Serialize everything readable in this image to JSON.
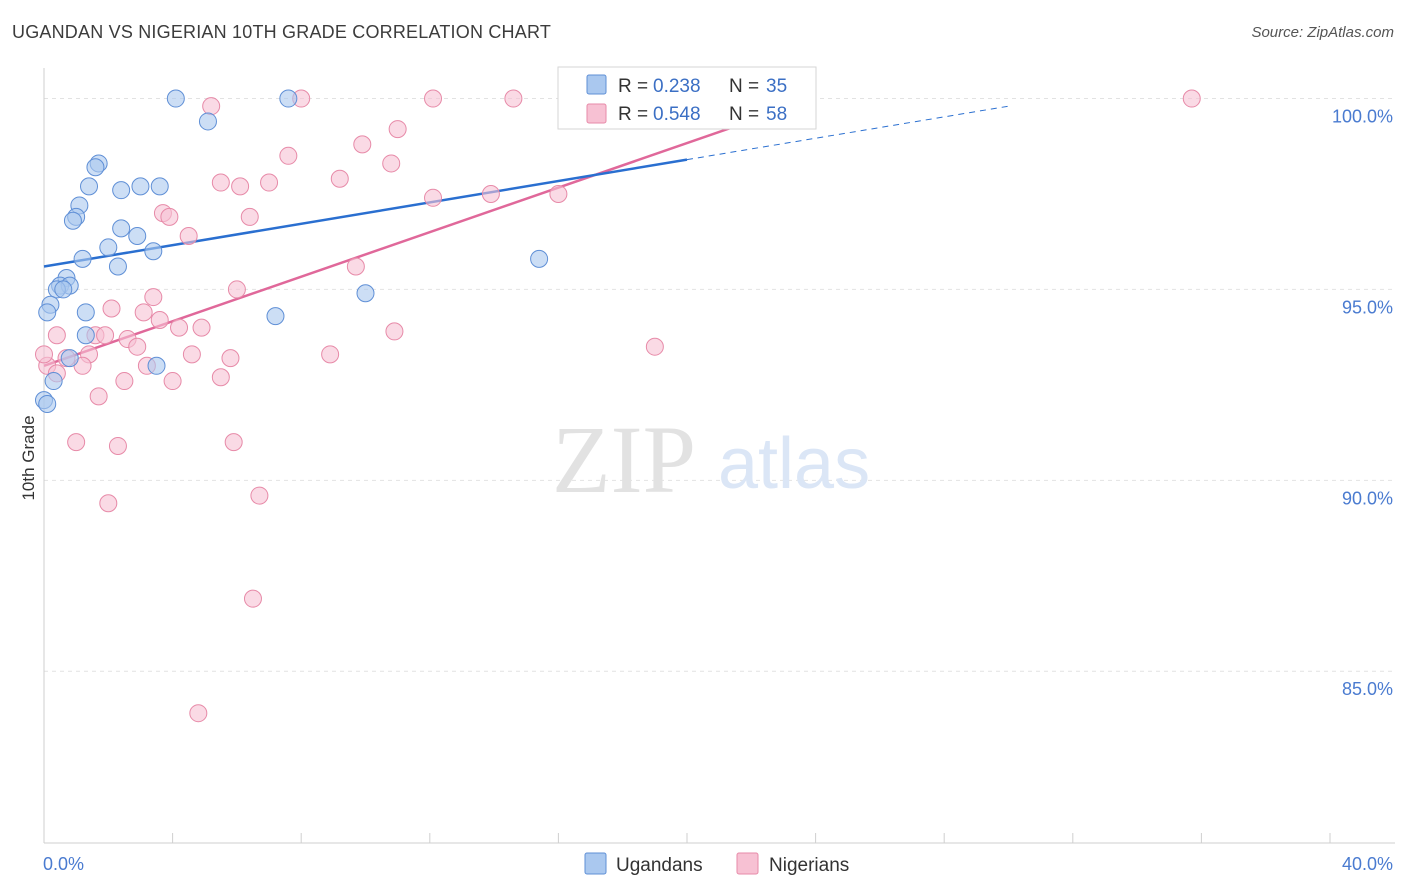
{
  "title": "UGANDAN VS NIGERIAN 10TH GRADE CORRELATION CHART",
  "source": "Source: ZipAtlas.com",
  "watermark": {
    "zip": "ZIP",
    "atlas": "atlas"
  },
  "chart_data": {
    "type": "scatter",
    "ylabel": "10th Grade",
    "xlim": [
      0,
      40
    ],
    "ylim": [
      80.5,
      100.8
    ],
    "x_end_labels": [
      "0.0%",
      "40.0%"
    ],
    "y_ticks": [
      {
        "value": 100,
        "label": "100.0%"
      },
      {
        "value": 95,
        "label": "95.0%"
      },
      {
        "value": 90,
        "label": "90.0%"
      },
      {
        "value": 85,
        "label": "85.0%"
      }
    ],
    "legend": {
      "rows": [
        {
          "series": "Ugandans",
          "r_label": "R =",
          "r_value": "0.238",
          "n_label": "N =",
          "n_value": "35"
        },
        {
          "series": "Nigerians",
          "r_label": "R =",
          "r_value": "0.548",
          "n_label": "N =",
          "n_value": "58"
        }
      ]
    },
    "colors": {
      "Ugandans": {
        "fill": "#aac8ef",
        "stroke": "#5f8fd6",
        "line": "#2a6fd0"
      },
      "Nigerians": {
        "fill": "#f7c1d3",
        "stroke": "#e78aa8",
        "line": "#e0689a"
      }
    },
    "series": [
      {
        "name": "Ugandans",
        "trend": {
          "x0": 0,
          "y0": 95.6,
          "x1": 20,
          "y1": 98.4,
          "dash_to_x": 30,
          "dash_to_y": 99.8
        },
        "points": [
          [
            4.1,
            100.0
          ],
          [
            7.6,
            100.0
          ],
          [
            5.1,
            99.4
          ],
          [
            1.7,
            98.3
          ],
          [
            1.6,
            98.2
          ],
          [
            1.4,
            97.7
          ],
          [
            2.4,
            97.6
          ],
          [
            3.0,
            97.7
          ],
          [
            3.6,
            97.7
          ],
          [
            1.1,
            97.2
          ],
          [
            1.0,
            96.9
          ],
          [
            0.9,
            96.8
          ],
          [
            2.4,
            96.6
          ],
          [
            2.9,
            96.4
          ],
          [
            2.0,
            96.1
          ],
          [
            3.4,
            96.0
          ],
          [
            1.2,
            95.8
          ],
          [
            2.3,
            95.6
          ],
          [
            15.4,
            95.8
          ],
          [
            0.7,
            95.3
          ],
          [
            0.5,
            95.1
          ],
          [
            0.8,
            95.1
          ],
          [
            0.4,
            95.0
          ],
          [
            0.6,
            95.0
          ],
          [
            10.0,
            94.9
          ],
          [
            0.2,
            94.6
          ],
          [
            0.1,
            94.4
          ],
          [
            1.3,
            94.4
          ],
          [
            7.2,
            94.3
          ],
          [
            1.3,
            93.8
          ],
          [
            0.8,
            93.2
          ],
          [
            3.5,
            93.0
          ],
          [
            0.3,
            92.6
          ],
          [
            0.0,
            92.1
          ],
          [
            0.1,
            92.0
          ]
        ]
      },
      {
        "name": "Nigerians",
        "trend": {
          "x0": 0,
          "y0": 93.0,
          "x1": 24,
          "y1": 100.0
        },
        "points": [
          [
            5.2,
            99.8
          ],
          [
            8.0,
            100.0
          ],
          [
            12.1,
            100.0
          ],
          [
            14.6,
            100.0
          ],
          [
            16.6,
            100.0
          ],
          [
            17.0,
            100.0
          ],
          [
            35.7,
            100.0
          ],
          [
            11.0,
            99.2
          ],
          [
            9.9,
            98.8
          ],
          [
            7.6,
            98.5
          ],
          [
            10.8,
            98.3
          ],
          [
            9.2,
            97.9
          ],
          [
            7.0,
            97.8
          ],
          [
            5.5,
            97.8
          ],
          [
            6.1,
            97.7
          ],
          [
            12.1,
            97.4
          ],
          [
            13.9,
            97.5
          ],
          [
            16.0,
            97.5
          ],
          [
            3.7,
            97.0
          ],
          [
            3.9,
            96.9
          ],
          [
            6.4,
            96.9
          ],
          [
            4.5,
            96.4
          ],
          [
            9.7,
            95.6
          ],
          [
            6.0,
            95.0
          ],
          [
            3.4,
            94.8
          ],
          [
            2.1,
            94.5
          ],
          [
            3.1,
            94.4
          ],
          [
            3.6,
            94.2
          ],
          [
            4.9,
            94.0
          ],
          [
            4.2,
            94.0
          ],
          [
            10.9,
            93.9
          ],
          [
            1.6,
            93.8
          ],
          [
            2.6,
            93.7
          ],
          [
            0.4,
            93.8
          ],
          [
            2.9,
            93.5
          ],
          [
            19.0,
            93.5
          ],
          [
            4.6,
            93.3
          ],
          [
            8.9,
            93.3
          ],
          [
            1.4,
            93.3
          ],
          [
            0.7,
            93.2
          ],
          [
            5.8,
            93.2
          ],
          [
            1.2,
            93.0
          ],
          [
            0.1,
            93.0
          ],
          [
            0.4,
            92.8
          ],
          [
            3.2,
            93.0
          ],
          [
            5.5,
            92.7
          ],
          [
            2.5,
            92.6
          ],
          [
            4.0,
            92.6
          ],
          [
            1.7,
            92.2
          ],
          [
            1.0,
            91.0
          ],
          [
            5.9,
            91.0
          ],
          [
            2.3,
            90.9
          ],
          [
            6.7,
            89.6
          ],
          [
            2.0,
            89.4
          ],
          [
            6.5,
            86.9
          ],
          [
            4.8,
            83.9
          ],
          [
            0.0,
            93.3
          ],
          [
            1.9,
            93.8
          ]
        ]
      }
    ]
  }
}
